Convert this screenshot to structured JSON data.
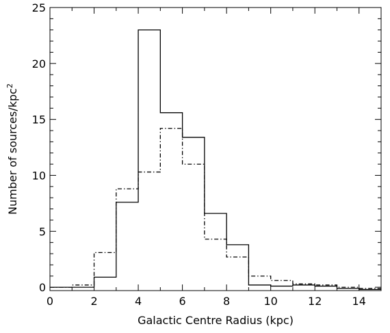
{
  "chart_data": {
    "type": "histogram",
    "title": "",
    "xlabel": "Galactic Centre Radius (kpc)",
    "ylabel": "Number of sources/kpc",
    "ylabel_superscript": "2",
    "xlim": [
      0,
      15
    ],
    "ylim": [
      -0.3,
      25
    ],
    "x_ticks": [
      0,
      2,
      4,
      6,
      8,
      10,
      12,
      14
    ],
    "y_ticks": [
      0,
      5,
      10,
      15,
      20,
      25
    ],
    "x_tick_labels": [
      "0",
      "2",
      "4",
      "6",
      "8",
      "10",
      "12",
      "14"
    ],
    "y_tick_labels": [
      "0",
      "5",
      "10",
      "15",
      "20",
      "25"
    ],
    "grid": false,
    "legend": "none",
    "bin_edges": [
      0,
      1,
      2,
      3,
      4,
      5,
      6,
      7,
      8,
      9,
      10,
      11,
      12,
      13,
      14,
      15
    ],
    "series": [
      {
        "style": "solid",
        "color": "#000000",
        "values": [
          0.0,
          0.0,
          0.9,
          7.6,
          23.0,
          15.6,
          13.4,
          6.6,
          3.8,
          0.2,
          0.1,
          0.2,
          0.1,
          -0.1,
          -0.2
        ]
      },
      {
        "style": "dash-dot",
        "color": "#000000",
        "values": [
          0.0,
          0.2,
          3.1,
          8.8,
          10.3,
          14.2,
          11.0,
          4.3,
          2.7,
          1.0,
          0.6,
          0.3,
          0.2,
          0.0,
          -0.1
        ]
      }
    ]
  }
}
